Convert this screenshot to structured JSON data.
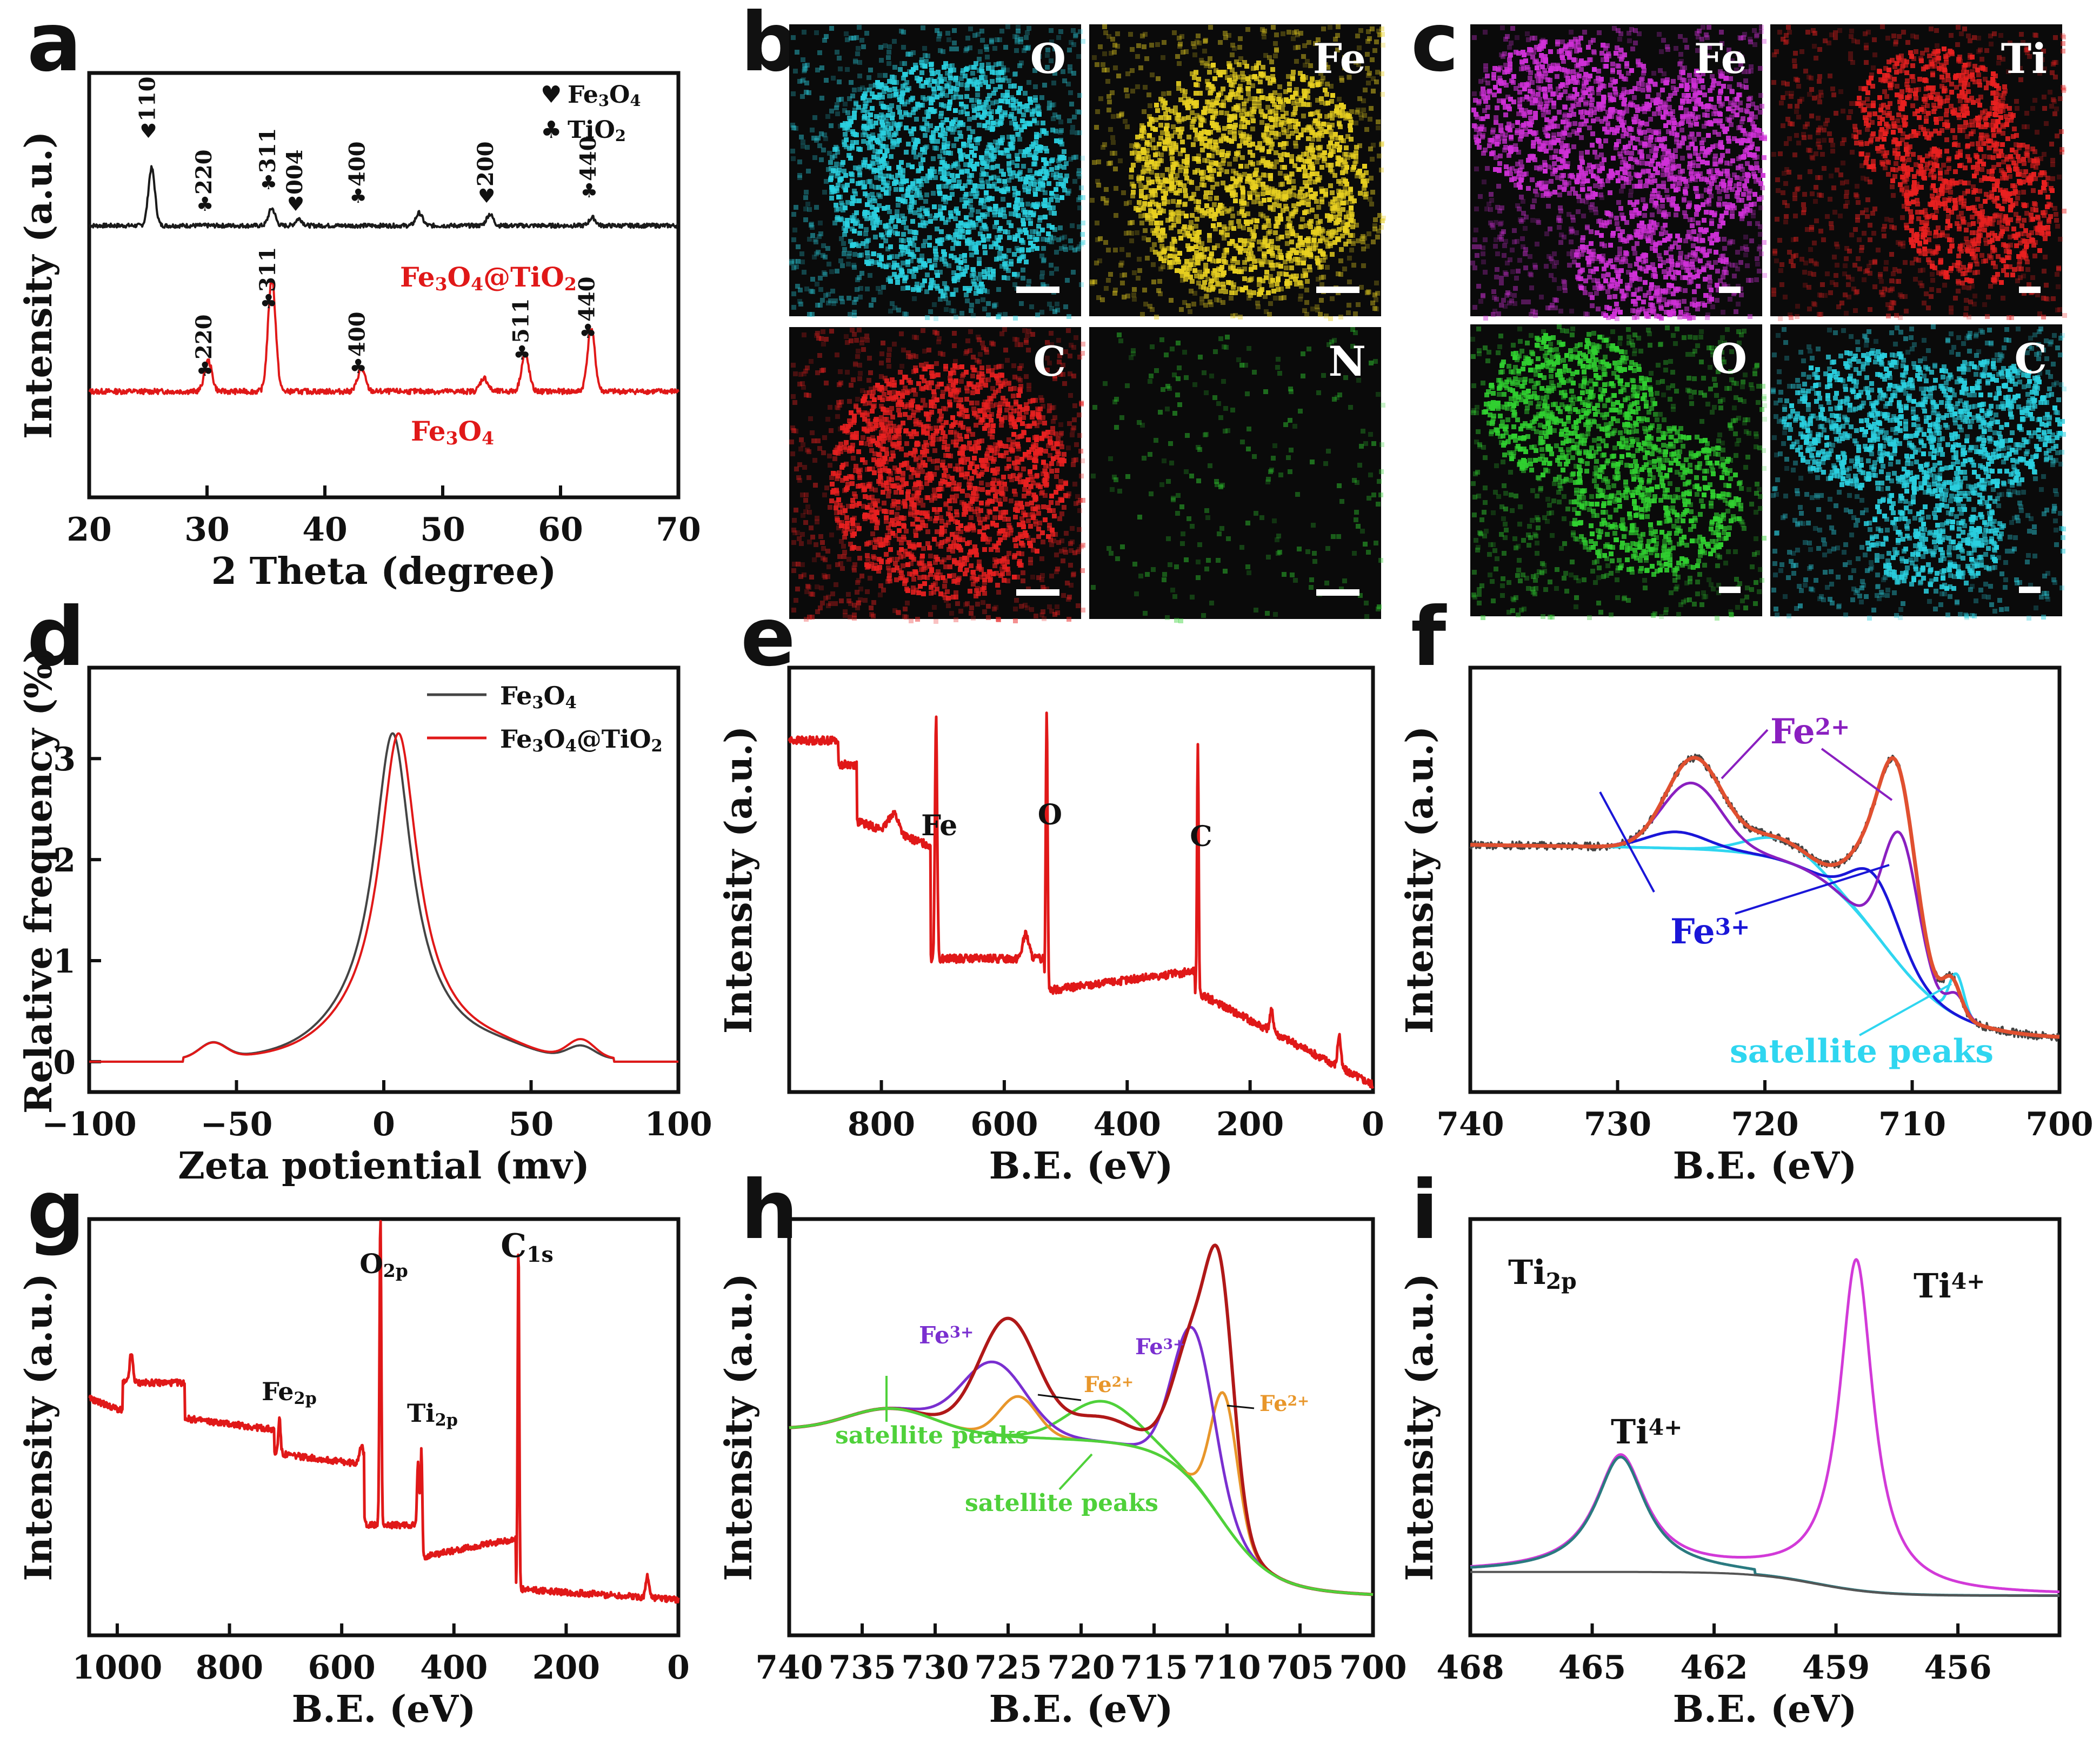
{
  "panel_letters": [
    "a",
    "b",
    "c",
    "d",
    "e",
    "f",
    "g",
    "h",
    "i"
  ],
  "colors": {
    "black": "#1a1a1a",
    "red": "#e01818",
    "purple": "#8a1fc0",
    "blue": "#1a16d8",
    "cyan": "#2fd6f0",
    "orange": "#e8962a",
    "green": "#4fd13a",
    "darkred": "#b01818",
    "violet": "#7a2fd0",
    "magenta": "#d23ad8",
    "teal": "#2a7a80"
  },
  "chart_data": [
    {
      "panel": "a",
      "type": "line",
      "xlabel": "2 Theta (degree)",
      "ylabel": "Intensity (a.u.)",
      "xlim": [
        20,
        70
      ],
      "xticks": [
        20,
        30,
        40,
        50,
        60,
        70
      ],
      "legend": [
        {
          "symbol": "♥",
          "label": "Fe3O4"
        },
        {
          "symbol": "♣",
          "label": "TiO2"
        }
      ],
      "series": [
        {
          "name": "Fe3O4@TiO2",
          "peaks": [
            [
              25.3,
              1.0
            ],
            [
              35.5,
              0.3
            ],
            [
              37.8,
              0.12
            ],
            [
              48.0,
              0.22
            ],
            [
              54.0,
              0.2
            ],
            [
              62.7,
              0.14
            ]
          ]
        },
        {
          "name": "Fe3O4",
          "peaks": [
            [
              30.1,
              0.27
            ],
            [
              35.5,
              1.0
            ],
            [
              43.1,
              0.2
            ],
            [
              53.5,
              0.12
            ],
            [
              57.0,
              0.33
            ],
            [
              62.6,
              0.55
            ]
          ]
        }
      ],
      "annotations_top": [
        {
          "x": 25.3,
          "symbol": "♥",
          "label": "110"
        },
        {
          "x": 30.1,
          "symbol": "♣",
          "label": "220"
        },
        {
          "x": 35.5,
          "symbol": "♣",
          "label": "311"
        },
        {
          "x": 37.8,
          "symbol": "♥",
          "label": "004"
        },
        {
          "x": 43.1,
          "symbol": "♣",
          "label": "400"
        },
        {
          "x": 54.0,
          "symbol": "♥",
          "label": "200"
        },
        {
          "x": 62.7,
          "symbol": "♣",
          "label": "440"
        }
      ],
      "annotations_bottom": [
        {
          "x": 30.1,
          "symbol": "♣",
          "label": "220"
        },
        {
          "x": 35.5,
          "symbol": "♣",
          "label": "311"
        },
        {
          "x": 43.1,
          "symbol": "♣",
          "label": "400"
        },
        {
          "x": 57.0,
          "symbol": "♣",
          "label": "511"
        },
        {
          "x": 62.6,
          "symbol": "♣",
          "label": "440"
        }
      ]
    },
    {
      "panel": "b",
      "type": "image",
      "tiles": [
        {
          "label": "O",
          "color": "#2ad0e0"
        },
        {
          "label": "Fe",
          "color": "#e8d020"
        },
        {
          "label": "C",
          "color": "#e82020"
        },
        {
          "label": "N",
          "color": "#30d030"
        }
      ]
    },
    {
      "panel": "c",
      "type": "image",
      "tiles": [
        {
          "label": "Fe",
          "color": "#d030d8"
        },
        {
          "label": "Ti",
          "color": "#e82020"
        },
        {
          "label": "O",
          "color": "#30d030"
        },
        {
          "label": "C",
          "color": "#2ad0e0"
        }
      ]
    },
    {
      "panel": "d",
      "type": "line",
      "xlabel": "Zeta potiential (mv)",
      "ylabel": "Relative frequency (%)",
      "xlim": [
        -100,
        100
      ],
      "ylim": [
        -0.3,
        3.9
      ],
      "xticks": [
        -100,
        -50,
        0,
        50,
        100
      ],
      "xtick_labels": [
        "−100",
        "−50",
        "0",
        "50",
        "100"
      ],
      "yticks": [
        0,
        1,
        2,
        3
      ],
      "series": [
        {
          "name": "Fe3O4",
          "center": 3,
          "peak": 3.25
        },
        {
          "name": "Fe3O4@TiO2",
          "center": 5,
          "peak": 3.25
        }
      ]
    },
    {
      "panel": "e",
      "type": "line",
      "xlabel": "B.E. (eV)",
      "ylabel": "Intensity (a.u.)",
      "xlim": [
        950,
        0
      ],
      "xticks": [
        800,
        600,
        400,
        200,
        0
      ],
      "peaks": [
        {
          "x": 711,
          "label": "Fe"
        },
        {
          "x": 531,
          "label": "O"
        },
        {
          "x": 285,
          "label": "C"
        }
      ]
    },
    {
      "panel": "f",
      "type": "line",
      "xlabel": "B.E. (eV)",
      "ylabel": "Intensity (a.u.)",
      "xlim": [
        740,
        700
      ],
      "xticks": [
        740,
        730,
        720,
        710,
        700
      ],
      "labels": [
        "Fe2+",
        "Fe3+",
        "satellite peaks"
      ]
    },
    {
      "panel": "g",
      "type": "line",
      "xlabel": "B.E. (eV)",
      "ylabel": "Intensity (a.u.)",
      "xlim": [
        1050,
        0
      ],
      "xticks": [
        1000,
        800,
        600,
        400,
        200,
        0
      ],
      "peaks": [
        {
          "x": 711,
          "label": "Fe2p"
        },
        {
          "x": 531,
          "label": "O2p"
        },
        {
          "x": 458,
          "label": "Ti2p"
        },
        {
          "x": 285,
          "label": "C1s"
        }
      ]
    },
    {
      "panel": "h",
      "type": "line",
      "xlabel": "B.E. (eV)",
      "ylabel": "Intensity (a.u.)",
      "xlim": [
        740,
        700
      ],
      "xticks": [
        740,
        735,
        730,
        725,
        720,
        715,
        710,
        705,
        700
      ],
      "labels": [
        "Fe3+",
        "Fe2+",
        "Fe3+",
        "Fe2+",
        "satellite peaks",
        "satellite peaks"
      ]
    },
    {
      "panel": "i",
      "type": "line",
      "xlabel": "B.E. (eV)",
      "ylabel": "Intensity (a.u.)",
      "xlim": [
        468,
        453.5
      ],
      "xticks": [
        468,
        465,
        462,
        459,
        456
      ],
      "labels": [
        "Ti2p",
        "Ti4+",
        "Ti4+"
      ],
      "peaks": [
        {
          "x": 464.3,
          "height": 0.35
        },
        {
          "x": 458.5,
          "height": 1.0
        }
      ]
    }
  ]
}
